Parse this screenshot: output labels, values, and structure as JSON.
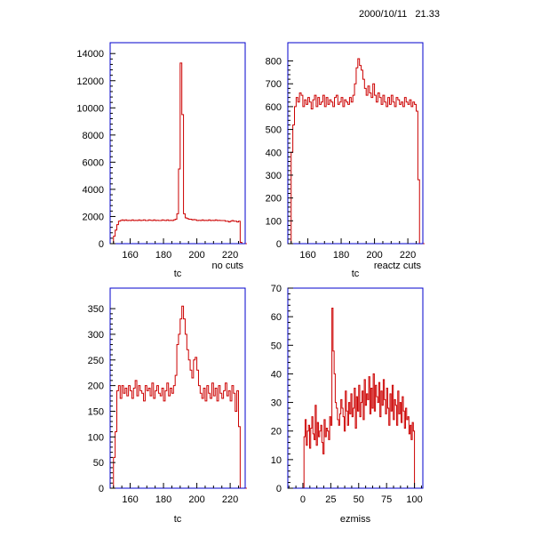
{
  "timestamp": "2000/10/11   21.33",
  "colors": {
    "frame": "#0000cc",
    "series": "#cc0000",
    "text": "#000000"
  },
  "chart_data": [
    {
      "type": "histogram",
      "title": "",
      "xlabel": "tc",
      "ylabel": "",
      "annotation": "no cuts",
      "xlim": [
        148,
        229
      ],
      "ylim": [
        0,
        14800
      ],
      "xticks": [
        160,
        180,
        200,
        220
      ],
      "yticks": [
        0,
        2000,
        4000,
        6000,
        8000,
        10000,
        12000,
        14000
      ],
      "bin_width": 1,
      "x_start": 149,
      "values": [
        0,
        550,
        1000,
        1400,
        1650,
        1700,
        1750,
        1700,
        1750,
        1700,
        1720,
        1700,
        1750,
        1700,
        1720,
        1700,
        1750,
        1700,
        1720,
        1750,
        1700,
        1700,
        1750,
        1720,
        1700,
        1750,
        1700,
        1720,
        1700,
        1700,
        1750,
        1720,
        1700,
        1750,
        1700,
        1720,
        1700,
        1750,
        1800,
        2200,
        5500,
        13300,
        9500,
        2200,
        1900,
        1850,
        1800,
        1800,
        1750,
        1780,
        1750,
        1700,
        1720,
        1700,
        1750,
        1700,
        1720,
        1700,
        1750,
        1700,
        1720,
        1700,
        1750,
        1700,
        1720,
        1700,
        1700,
        1700,
        1650,
        1650,
        1600,
        1650,
        1700,
        1650,
        1650,
        1600,
        1650,
        100,
        0,
        0,
        0
      ]
    },
    {
      "type": "histogram",
      "title": "",
      "xlabel": "tc",
      "ylabel": "",
      "annotation": "reactz cuts",
      "xlim": [
        148,
        229
      ],
      "ylim": [
        0,
        880
      ],
      "xticks": [
        160,
        180,
        200,
        220
      ],
      "yticks": [
        0,
        100,
        200,
        300,
        400,
        500,
        600,
        700,
        800
      ],
      "bin_width": 1,
      "x_start": 149,
      "values": [
        0,
        400,
        520,
        600,
        640,
        620,
        660,
        650,
        600,
        630,
        610,
        640,
        620,
        590,
        630,
        650,
        600,
        640,
        610,
        620,
        650,
        600,
        640,
        610,
        630,
        620,
        600,
        640,
        650,
        610,
        620,
        640,
        600,
        630,
        620,
        610,
        640,
        620,
        650,
        700,
        770,
        810,
        780,
        760,
        720,
        680,
        650,
        690,
        660,
        640,
        700,
        650,
        620,
        660,
        640,
        610,
        650,
        620,
        600,
        640,
        610,
        650,
        620,
        600,
        640,
        630,
        610,
        620,
        600,
        640,
        620,
        610,
        630,
        600,
        620,
        610,
        580,
        280,
        0,
        0,
        0
      ]
    },
    {
      "type": "histogram",
      "title": "",
      "xlabel": "tc",
      "ylabel": "",
      "annotation": "",
      "xlim": [
        148,
        229
      ],
      "ylim": [
        0,
        390
      ],
      "xticks": [
        160,
        180,
        200,
        220
      ],
      "yticks": [
        0,
        50,
        100,
        150,
        200,
        250,
        300,
        350
      ],
      "bin_width": 1,
      "x_start": 149,
      "values": [
        0,
        60,
        110,
        190,
        200,
        175,
        200,
        185,
        195,
        180,
        200,
        190,
        175,
        195,
        210,
        180,
        200,
        190,
        185,
        170,
        200,
        190,
        195,
        180,
        205,
        175,
        190,
        200,
        185,
        180,
        195,
        170,
        190,
        205,
        180,
        195,
        185,
        200,
        220,
        280,
        300,
        330,
        355,
        330,
        300,
        270,
        250,
        230,
        215,
        250,
        255,
        230,
        200,
        185,
        175,
        195,
        170,
        200,
        185,
        175,
        205,
        180,
        195,
        170,
        200,
        185,
        175,
        190,
        205,
        180,
        190,
        170,
        200,
        185,
        150,
        190,
        120,
        0,
        0,
        0,
        0
      ]
    },
    {
      "type": "histogram",
      "title": "",
      "xlabel": "ezmiss",
      "ylabel": "",
      "annotation": "",
      "xlim": [
        -13.5,
        107.5
      ],
      "ylim": [
        0,
        70
      ],
      "xticks": [
        0,
        25,
        50,
        75,
        100
      ],
      "yticks": [
        0,
        10,
        20,
        30,
        40,
        50,
        60,
        70
      ],
      "bin_width": 1,
      "x_start": 0,
      "values": [
        0,
        18,
        24,
        15,
        20,
        22,
        14,
        21,
        25,
        19,
        17,
        29,
        15,
        23,
        18,
        20,
        22,
        16,
        12,
        24,
        18,
        21,
        20,
        17,
        25,
        22,
        63,
        48,
        40,
        30,
        28,
        24,
        22,
        26,
        31,
        28,
        25,
        20,
        34,
        27,
        22,
        30,
        26,
        33,
        25,
        28,
        35,
        21,
        32,
        27,
        36,
        25,
        30,
        34,
        24,
        38,
        29,
        33,
        31,
        39,
        26,
        35,
        28,
        40,
        27,
        36,
        32,
        30,
        37,
        25,
        34,
        29,
        38,
        31,
        26,
        35,
        28,
        22,
        33,
        27,
        36,
        24,
        31,
        29,
        22,
        34,
        26,
        30,
        23,
        32,
        27,
        21,
        28,
        24,
        25,
        19,
        22,
        17,
        23,
        20,
        0
      ]
    }
  ]
}
